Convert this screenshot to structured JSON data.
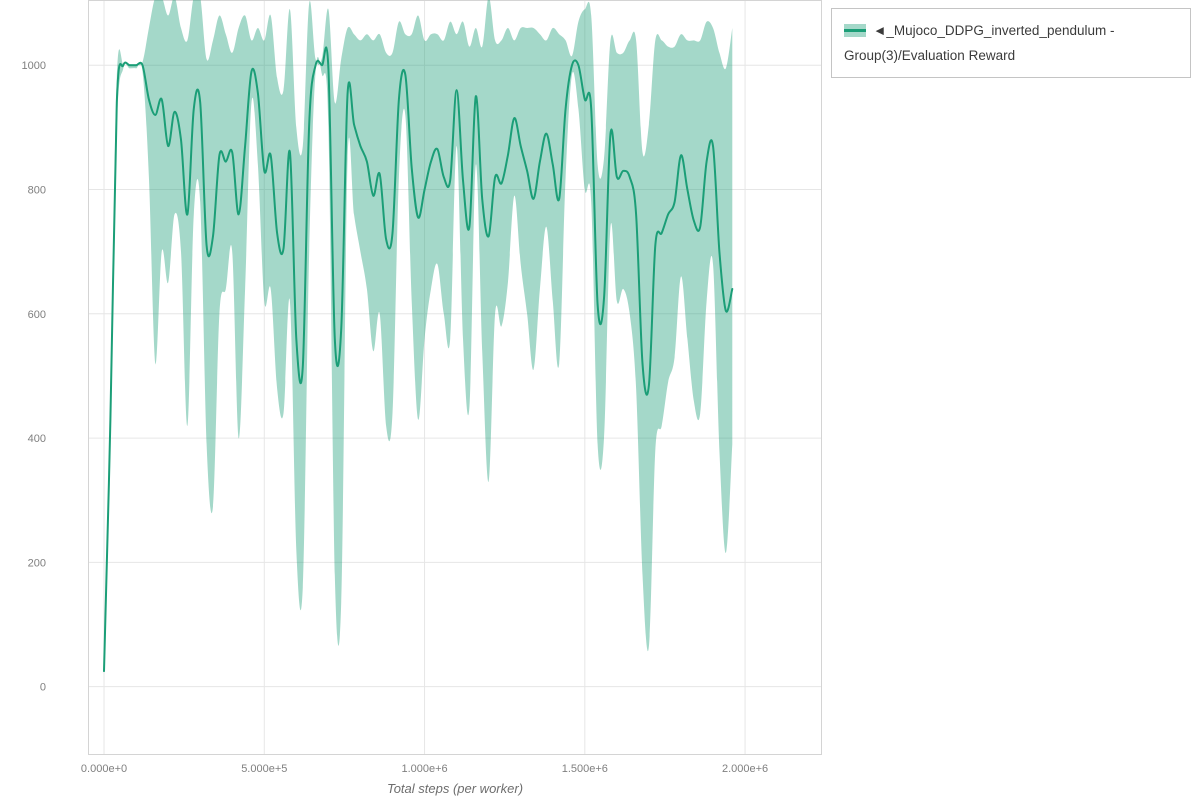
{
  "chart_data": {
    "type": "line",
    "title": "",
    "xlabel": "Total steps (per worker)",
    "ylabel": "",
    "grid": true,
    "xlim": [
      -50000,
      2240000
    ],
    "ylim": [
      -110,
      1105
    ],
    "x_ticks": {
      "values": [
        0,
        500000,
        1000000,
        1500000,
        2000000
      ],
      "labels": [
        "0.000e+0",
        "5.000e+5",
        "1.000e+6",
        "1.500e+6",
        "2.000e+6"
      ]
    },
    "y_ticks": {
      "values": [
        0,
        200,
        400,
        600,
        800,
        1000
      ],
      "labels": [
        "0",
        "200",
        "400",
        "600",
        "800",
        "1000"
      ]
    },
    "colors": {
      "line": "#1b9e77",
      "band": "#1b9e77",
      "band_opacity": 0.4,
      "grid": "#e6e6e6",
      "frame": "#d4d4d4",
      "tick_text": "#7f7f7f",
      "axis_title": "#6e6e6e",
      "legend_border": "#c4c4c4",
      "legend_text": "#3b3b3b"
    },
    "legend": {
      "position": "top-right",
      "entries": [
        {
          "label": "◄_Mujoco_DDPG_inverted_pendulum - Group(3)/Evaluation Reward",
          "line_color": "#1b9e77",
          "band_color": "#1b9e77"
        }
      ]
    },
    "series": [
      {
        "name": "Mujoco_DDPG_inverted_pendulum - Group(3)/Evaluation Reward",
        "x": [
          0,
          20000,
          40000,
          60000,
          80000,
          100000,
          120000,
          140000,
          160000,
          180000,
          200000,
          220000,
          240000,
          260000,
          280000,
          300000,
          320000,
          340000,
          360000,
          380000,
          400000,
          420000,
          440000,
          460000,
          480000,
          500000,
          520000,
          540000,
          560000,
          580000,
          600000,
          620000,
          640000,
          660000,
          680000,
          700000,
          720000,
          740000,
          760000,
          780000,
          800000,
          820000,
          840000,
          860000,
          880000,
          900000,
          920000,
          940000,
          960000,
          980000,
          1000000,
          1020000,
          1040000,
          1060000,
          1080000,
          1100000,
          1120000,
          1140000,
          1160000,
          1180000,
          1200000,
          1220000,
          1240000,
          1260000,
          1280000,
          1300000,
          1320000,
          1340000,
          1360000,
          1380000,
          1400000,
          1420000,
          1440000,
          1460000,
          1480000,
          1500000,
          1520000,
          1540000,
          1560000,
          1580000,
          1600000,
          1620000,
          1640000,
          1660000,
          1680000,
          1700000,
          1720000,
          1740000,
          1760000,
          1780000,
          1800000,
          1820000,
          1840000,
          1860000,
          1880000,
          1900000,
          1920000,
          1940000,
          1960000
        ],
        "mean": [
          25,
          430,
          940,
          1000,
          1000,
          1000,
          1000,
          945,
          920,
          945,
          870,
          925,
          880,
          760,
          930,
          940,
          710,
          725,
          855,
          845,
          860,
          760,
          870,
          990,
          955,
          830,
          855,
          730,
          705,
          860,
          560,
          515,
          905,
          1000,
          1000,
          995,
          560,
          575,
          955,
          905,
          870,
          845,
          790,
          825,
          720,
          730,
          945,
          985,
          835,
          755,
          800,
          845,
          865,
          820,
          815,
          960,
          815,
          740,
          950,
          785,
          725,
          820,
          810,
          855,
          915,
          870,
          830,
          785,
          845,
          890,
          840,
          785,
          930,
          1000,
          1000,
          945,
          930,
          615,
          625,
          890,
          820,
          830,
          820,
          760,
          520,
          485,
          710,
          730,
          760,
          780,
          855,
          800,
          750,
          740,
          845,
          870,
          700,
          605,
          640
        ],
        "lower": [
          25,
          400,
          900,
          995,
          995,
          995,
          990,
          820,
          520,
          700,
          650,
          760,
          700,
          420,
          760,
          780,
          390,
          290,
          600,
          640,
          700,
          400,
          640,
          940,
          840,
          620,
          640,
          480,
          440,
          620,
          220,
          160,
          700,
          990,
          985,
          900,
          180,
          135,
          850,
          760,
          700,
          640,
          540,
          600,
          420,
          440,
          820,
          920,
          620,
          430,
          560,
          640,
          680,
          600,
          560,
          870,
          560,
          450,
          840,
          540,
          330,
          600,
          580,
          650,
          790,
          680,
          600,
          510,
          640,
          740,
          620,
          520,
          820,
          985,
          930,
          800,
          780,
          390,
          400,
          740,
          620,
          640,
          600,
          480,
          180,
          65,
          380,
          420,
          490,
          530,
          660,
          560,
          460,
          440,
          620,
          680,
          380,
          215,
          390
        ],
        "upper": [
          25,
          460,
          980,
          1002,
          1002,
          1002,
          1005,
          1060,
          1110,
          1110,
          1080,
          1110,
          1060,
          1040,
          1110,
          1110,
          1010,
          1040,
          1080,
          1050,
          1020,
          1060,
          1080,
          1040,
          1060,
          1040,
          1080,
          980,
          960,
          1090,
          900,
          870,
          1100,
          1010,
          1012,
          1090,
          940,
          1010,
          1060,
          1050,
          1040,
          1050,
          1040,
          1050,
          1020,
          1020,
          1070,
          1050,
          1050,
          1080,
          1040,
          1050,
          1050,
          1040,
          1070,
          1050,
          1070,
          1030,
          1060,
          1030,
          1110,
          1040,
          1040,
          1060,
          1040,
          1060,
          1060,
          1060,
          1050,
          1040,
          1060,
          1050,
          1040,
          1015,
          1070,
          1090,
          1080,
          840,
          850,
          1040,
          1020,
          1020,
          1040,
          1040,
          860,
          905,
          1040,
          1040,
          1030,
          1030,
          1050,
          1040,
          1040,
          1040,
          1070,
          1060,
          1020,
          995,
          1060
        ]
      }
    ]
  }
}
